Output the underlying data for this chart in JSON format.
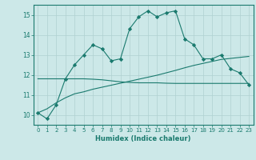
{
  "x": [
    0,
    1,
    2,
    3,
    4,
    5,
    6,
    7,
    8,
    9,
    10,
    11,
    12,
    13,
    14,
    15,
    16,
    17,
    18,
    19,
    20,
    21,
    22,
    23
  ],
  "line1": [
    10.1,
    9.8,
    10.5,
    11.8,
    12.5,
    13.0,
    13.5,
    13.3,
    12.7,
    12.8,
    14.3,
    14.9,
    15.2,
    14.9,
    15.1,
    15.2,
    13.8,
    13.5,
    12.8,
    12.8,
    13.0,
    12.3,
    12.1,
    11.5
  ],
  "line2": [
    11.8,
    11.8,
    11.8,
    11.8,
    11.8,
    11.8,
    11.78,
    11.75,
    11.7,
    11.65,
    11.62,
    11.6,
    11.6,
    11.6,
    11.58,
    11.57,
    11.57,
    11.57,
    11.57,
    11.57,
    11.57,
    11.57,
    11.57,
    11.57
  ],
  "line3": [
    10.1,
    10.3,
    10.6,
    10.85,
    11.05,
    11.15,
    11.28,
    11.38,
    11.48,
    11.58,
    11.68,
    11.78,
    11.88,
    11.98,
    12.1,
    12.22,
    12.35,
    12.47,
    12.57,
    12.67,
    12.77,
    12.82,
    12.87,
    12.92
  ],
  "line_color": "#1a7a6e",
  "bg_color": "#cce8e8",
  "grid_color": "#b0d0d0",
  "ylim": [
    9.5,
    15.5
  ],
  "xlim": [
    -0.5,
    23.5
  ],
  "yticks": [
    10,
    11,
    12,
    13,
    14,
    15
  ],
  "xticks": [
    0,
    1,
    2,
    3,
    4,
    5,
    6,
    7,
    8,
    9,
    10,
    11,
    12,
    13,
    14,
    15,
    16,
    17,
    18,
    19,
    20,
    21,
    22,
    23
  ],
  "xlabel": "Humidex (Indice chaleur)",
  "marker": "D",
  "markersize": 2.2,
  "linewidth": 0.8
}
